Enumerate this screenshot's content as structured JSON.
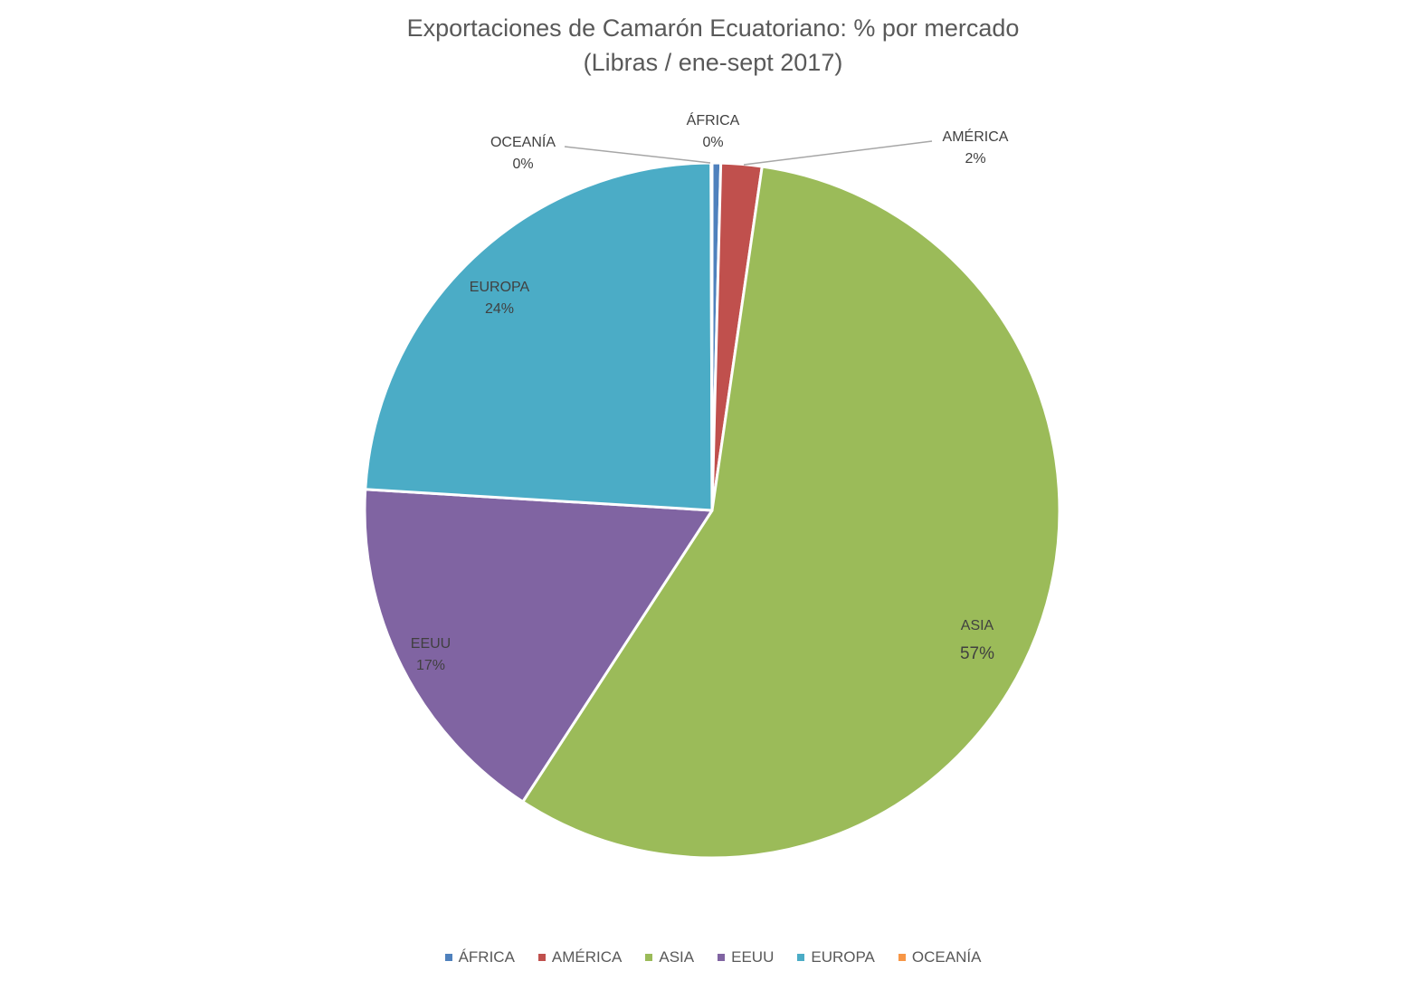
{
  "chart_data": {
    "type": "pie",
    "title": "Exportaciones de Camarón Ecuatoriano: % por mercado",
    "subtitle": "(Libras / ene-sept 2017)",
    "legend_position": "bottom",
    "slices": [
      {
        "name": "ÁFRICA",
        "value": 0.4,
        "label": "0%",
        "color": "#4F81BD"
      },
      {
        "name": "AMÉRICA",
        "value": 1.9,
        "label": "2%",
        "color": "#C0504D"
      },
      {
        "name": "ASIA",
        "value": 56.9,
        "label": "57%",
        "color": "#9BBB59"
      },
      {
        "name": "EEUU",
        "value": 16.8,
        "label": "17%",
        "color": "#8064A2"
      },
      {
        "name": "EUROPA",
        "value": 24.0,
        "label": "24%",
        "color": "#4BACC6"
      },
      {
        "name": "OCEANÍA",
        "value": 0.05,
        "label": "0%",
        "color": "#F79646"
      }
    ]
  }
}
